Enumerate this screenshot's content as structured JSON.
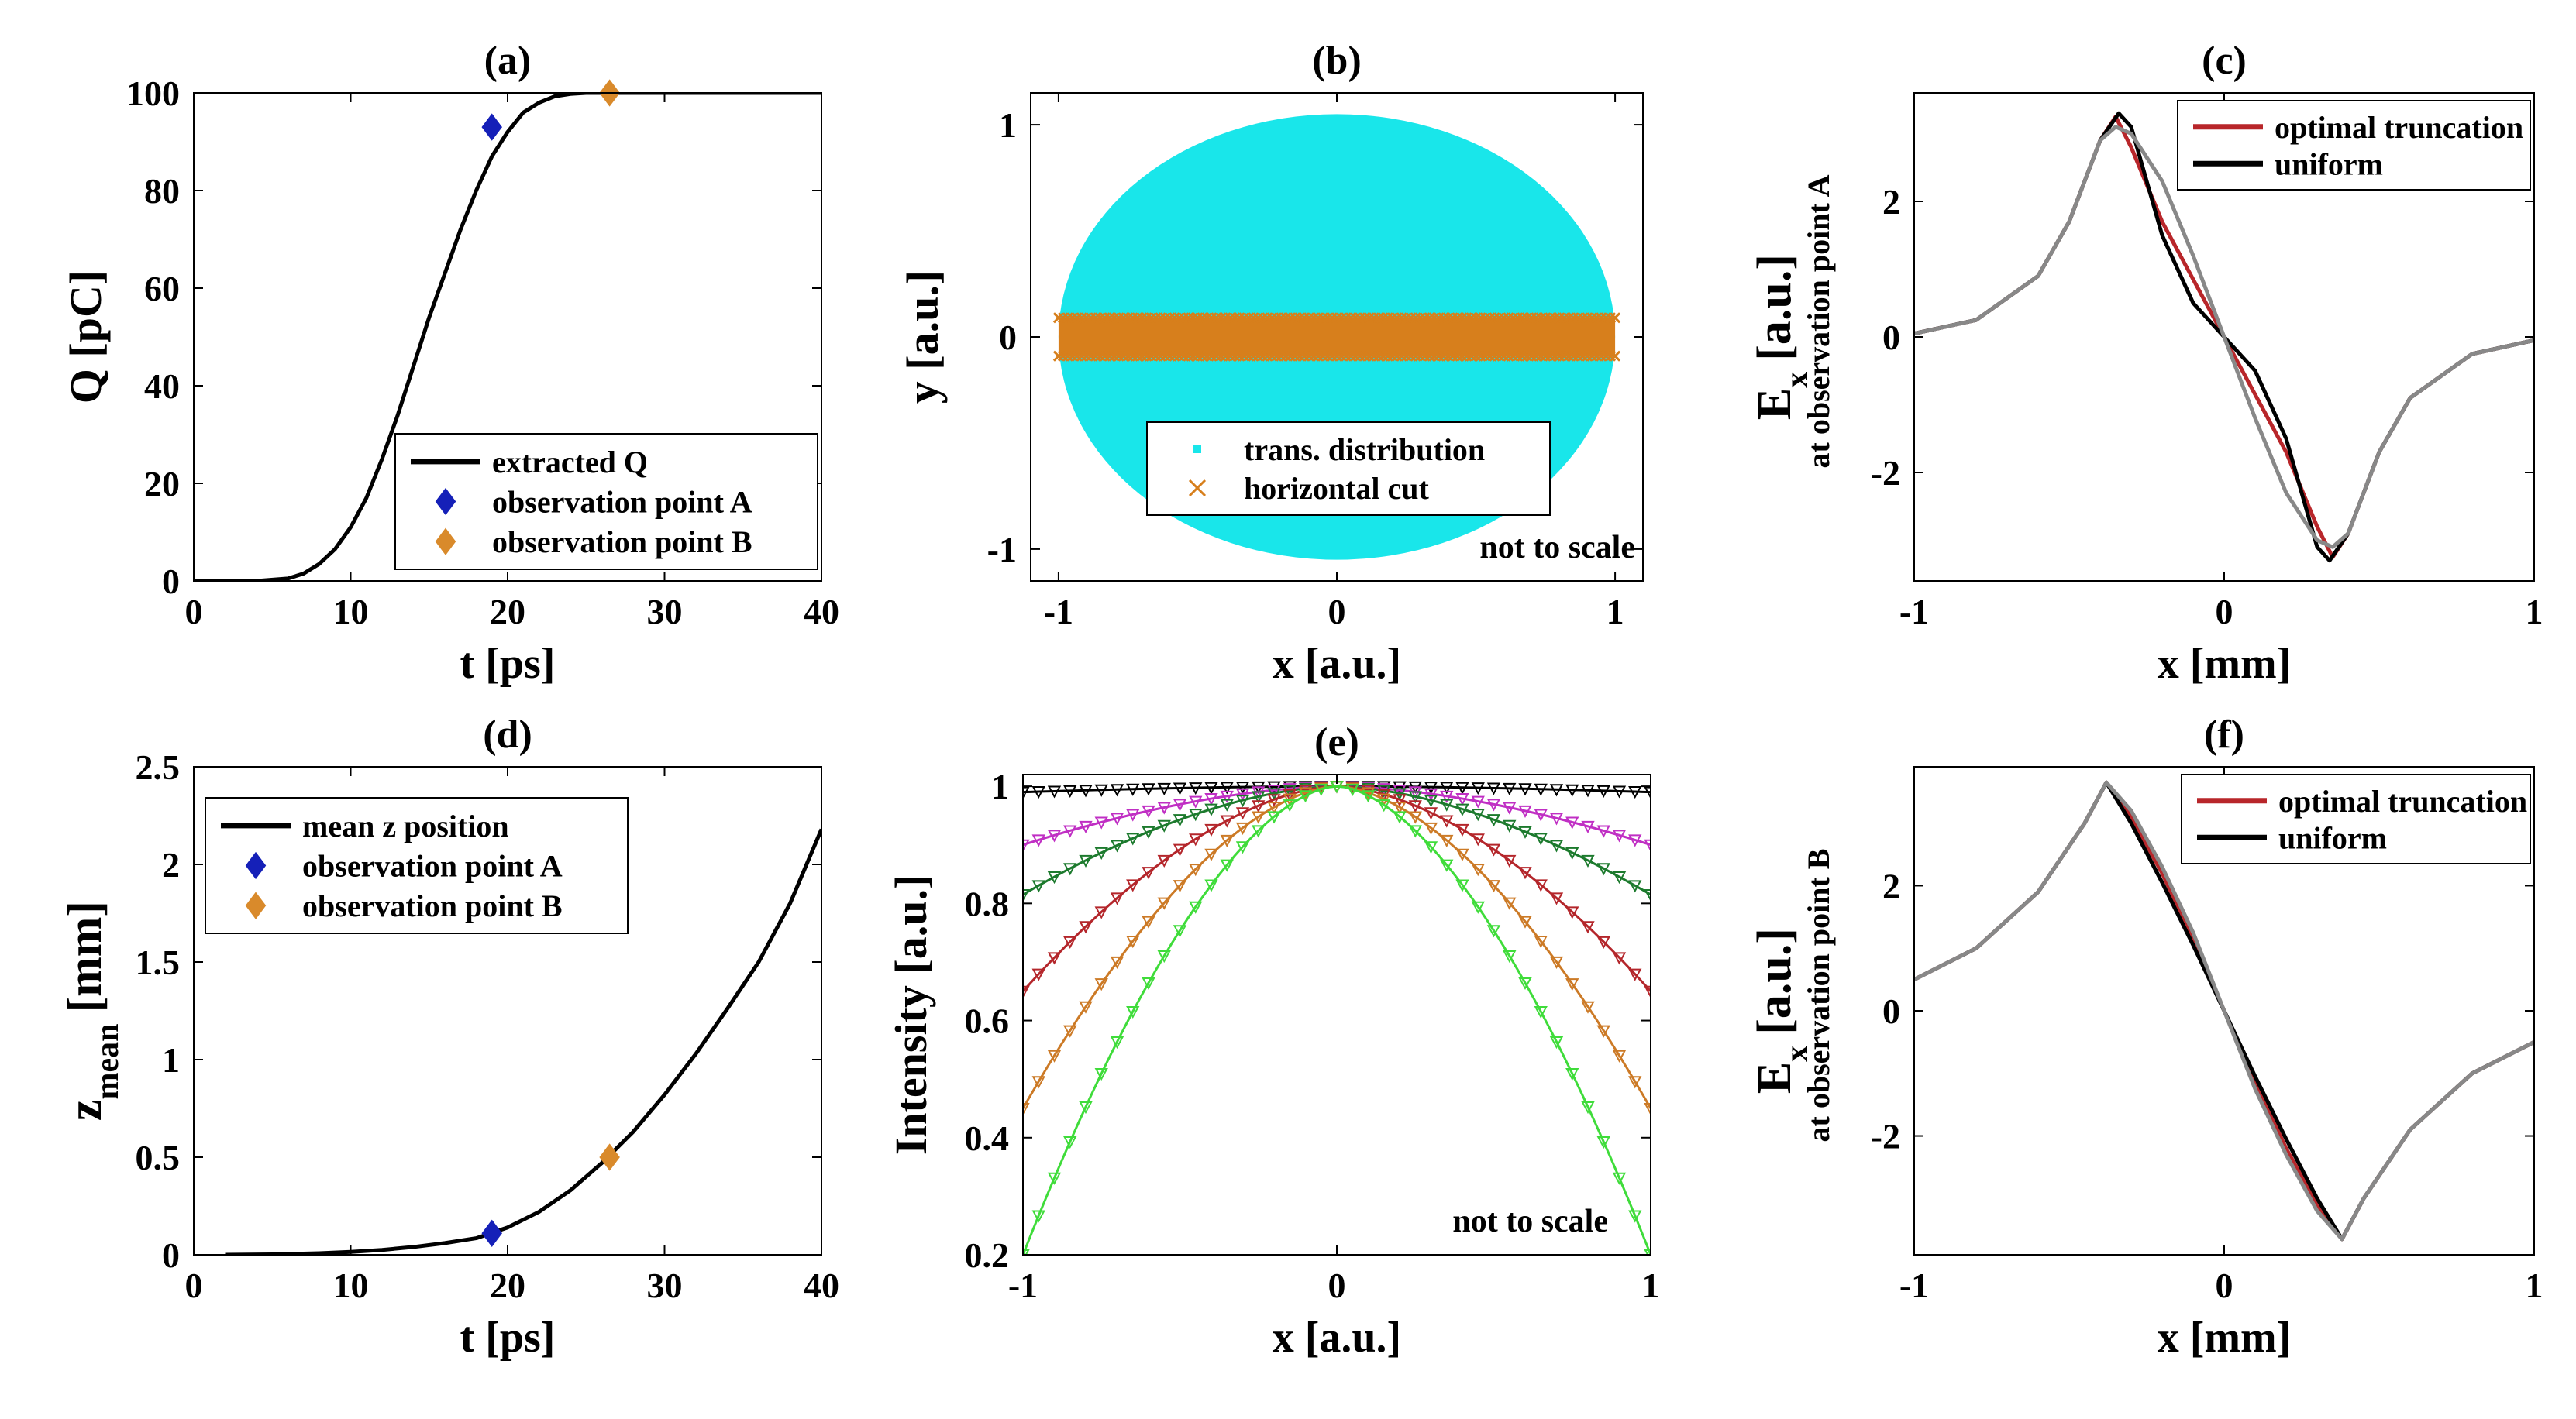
{
  "figure": {
    "panels": [
      {
        "id": "a",
        "title": "(a)",
        "type": "line",
        "xlabel": "t [ps]",
        "ylabel": "Q [pC]",
        "xlim": [
          0,
          40
        ],
        "ylim": [
          0,
          100
        ],
        "xticks": [
          0,
          10,
          20,
          30,
          40
        ],
        "yticks": [
          0,
          20,
          40,
          60,
          80,
          100
        ],
        "xticklabels": [
          "0",
          "10",
          "20",
          "30",
          "40"
        ],
        "yticklabels": [
          "0",
          "20",
          "40",
          "60",
          "80",
          "100"
        ],
        "series": [
          {
            "name": "extracted Q",
            "color": "#000000",
            "marker": "none",
            "x": [
              0,
              2,
              4,
              6,
              7,
              8,
              9,
              10,
              11,
              12,
              13,
              14,
              15,
              16,
              17,
              18,
              19,
              20,
              21,
              22,
              23,
              24,
              25,
              26,
              28,
              30,
              35,
              40
            ],
            "y": [
              0,
              0,
              0,
              0.5,
              1.5,
              3.5,
              6.5,
              11,
              17,
              25,
              34,
              44,
              54,
              63,
              72,
              80,
              87,
              92,
              96,
              98,
              99.3,
              99.8,
              100,
              100,
              100,
              100,
              100,
              100
            ]
          },
          {
            "name": "observation point A",
            "color": "#1520b8",
            "marker": "diamond",
            "x": [
              19
            ],
            "y": [
              93
            ]
          },
          {
            "name": "observation point B",
            "color": "#d98a2b",
            "marker": "diamond",
            "x": [
              26.5
            ],
            "y": [
              100
            ]
          }
        ],
        "legend": {
          "position": "bottom-right",
          "entries": [
            "extracted Q",
            "observation point A",
            "observation point B"
          ]
        }
      },
      {
        "id": "b",
        "title": "(b)",
        "type": "scatter",
        "xlabel": "x [a.u.]",
        "ylabel": "y [a.u.]",
        "xlim": [
          -1.1,
          1.1
        ],
        "ylim": [
          -1.15,
          1.15
        ],
        "xticks": [
          -1,
          0,
          1
        ],
        "yticks": [
          -1,
          0,
          1
        ],
        "xticklabels": [
          "-1",
          "0",
          "1"
        ],
        "yticklabels": [
          "-1",
          "0",
          "1"
        ],
        "series": [
          {
            "name": "trans. distribution",
            "color": "#19e6ea",
            "marker": "dot",
            "shape": "ellipse",
            "rx": 1.0,
            "ry": 1.05
          },
          {
            "name": "horizontal cut",
            "color": "#d77f1c",
            "marker": "x",
            "shape": "band",
            "x": [
              -1,
              1
            ],
            "y": [
              -0.09,
              0.09
            ]
          }
        ],
        "legend": {
          "position": "bottom-center",
          "entries": [
            "trans. distribution",
            "horizontal cut"
          ]
        },
        "annotation": "not to scale"
      },
      {
        "id": "c",
        "title": "(c)",
        "type": "line",
        "xlabel": "x [mm]",
        "ylabel_main": "E",
        "ylabel_sub": "x",
        "ylabel_unit": "[a.u.]",
        "ylabel_second": "at observation point A",
        "xlim": [
          -1,
          1
        ],
        "ylim": [
          -3.6,
          3.6
        ],
        "xticks": [
          -1,
          0,
          1
        ],
        "yticks": [
          -2,
          0,
          2
        ],
        "xticklabels": [
          "-1",
          "0",
          "1"
        ],
        "yticklabels": [
          "-2",
          "0",
          "2"
        ],
        "series": [
          {
            "name": "optimal truncation",
            "color": "#b8262a",
            "x": [
              -1,
              -0.8,
              -0.6,
              -0.5,
              -0.4,
              -0.35,
              -0.3,
              -0.2,
              -0.1,
              0,
              0.1,
              0.2,
              0.3,
              0.35,
              0.4,
              0.5,
              0.6,
              0.8,
              1
            ],
            "y": [
              0.05,
              0.25,
              0.9,
              1.7,
              2.9,
              3.25,
              2.8,
              1.7,
              0.85,
              0,
              -0.85,
              -1.7,
              -2.8,
              -3.25,
              -2.9,
              -1.7,
              -0.9,
              -0.25,
              -0.05
            ]
          },
          {
            "name": "uniform",
            "color": "#000000",
            "x": [
              -1,
              -0.8,
              -0.6,
              -0.5,
              -0.4,
              -0.34,
              -0.3,
              -0.25,
              -0.2,
              -0.1,
              0,
              0.1,
              0.2,
              0.25,
              0.3,
              0.34,
              0.4,
              0.5,
              0.6,
              0.8,
              1
            ],
            "y": [
              0.05,
              0.25,
              0.9,
              1.7,
              2.9,
              3.3,
              3.1,
              2.3,
              1.5,
              0.5,
              0,
              -0.5,
              -1.5,
              -2.3,
              -3.1,
              -3.3,
              -2.9,
              -1.7,
              -0.9,
              -0.25,
              -0.05
            ]
          },
          {
            "name": "",
            "color": "#888888",
            "legend": false,
            "x": [
              -1,
              -0.8,
              -0.6,
              -0.5,
              -0.4,
              -0.35,
              -0.3,
              -0.2,
              -0.1,
              0,
              0.1,
              0.2,
              0.3,
              0.35,
              0.4,
              0.5,
              0.6,
              0.8,
              1
            ],
            "y": [
              0.05,
              0.25,
              0.9,
              1.7,
              2.9,
              3.1,
              3.0,
              2.3,
              1.2,
              0,
              -1.2,
              -2.3,
              -3.0,
              -3.1,
              -2.9,
              -1.7,
              -0.9,
              -0.25,
              -0.05
            ]
          }
        ],
        "legend": {
          "position": "top-right",
          "entries": [
            "optimal truncation",
            "uniform"
          ]
        }
      },
      {
        "id": "d",
        "title": "(d)",
        "type": "line",
        "xlabel": "t [ps]",
        "ylabel_main": "z",
        "ylabel_sub": "mean",
        "ylabel_unit": "[mm]",
        "xlim": [
          0,
          40
        ],
        "ylim": [
          0,
          2.5
        ],
        "xticks": [
          0,
          10,
          20,
          30,
          40
        ],
        "yticks": [
          0,
          0.5,
          1,
          1.5,
          2,
          2.5
        ],
        "xticklabels": [
          "0",
          "10",
          "20",
          "30",
          "40"
        ],
        "yticklabels": [
          "0",
          "0.5",
          "1",
          "1.5",
          "2",
          "2.5"
        ],
        "series": [
          {
            "name": "mean z position",
            "color": "#000000",
            "marker": "none",
            "x": [
              2,
              5,
              8,
              10,
              12,
              14,
              16,
              18,
              20,
              22,
              24,
              26,
              28,
              30,
              32,
              34,
              36,
              38,
              40
            ],
            "y": [
              0,
              0.002,
              0.008,
              0.015,
              0.025,
              0.04,
              0.06,
              0.085,
              0.14,
              0.22,
              0.33,
              0.47,
              0.63,
              0.82,
              1.03,
              1.26,
              1.5,
              1.8,
              2.18
            ]
          },
          {
            "name": "observation point A",
            "color": "#1520b8",
            "marker": "diamond",
            "x": [
              19
            ],
            "y": [
              0.11
            ]
          },
          {
            "name": "observation point B",
            "color": "#d98a2b",
            "marker": "diamond",
            "x": [
              26.5
            ],
            "y": [
              0.5
            ]
          }
        ],
        "legend": {
          "position": "top-left",
          "entries": [
            "mean z position",
            "observation point A",
            "observation point B"
          ]
        }
      },
      {
        "id": "e",
        "title": "(e)",
        "type": "line",
        "xlabel": "x [a.u.]",
        "ylabel": "Intensity [a.u.]",
        "xlim": [
          -1,
          1
        ],
        "ylim": [
          0.2,
          1.02
        ],
        "xticks": [
          -1,
          0,
          1
        ],
        "yticks": [
          0.2,
          0.4,
          0.6,
          0.8,
          1
        ],
        "xticklabels": [
          "-1",
          "0",
          "1"
        ],
        "yticklabels": [
          "0.2",
          "0.4",
          "0.6",
          "0.8",
          "1"
        ],
        "series": [
          {
            "name": "",
            "color": "#000000",
            "edge": 0.99
          },
          {
            "name": "",
            "color": "#c02fc4",
            "edge": 0.9
          },
          {
            "name": "",
            "color": "#1c7a2d",
            "edge": 0.815
          },
          {
            "name": "",
            "color": "#b4262b",
            "edge": 0.65
          },
          {
            "name": "",
            "color": "#cc7a26",
            "edge": 0.45
          },
          {
            "name": "",
            "color": "#3fdc3a",
            "edge": 0.2
          }
        ],
        "annotation": "not to scale"
      },
      {
        "id": "f",
        "title": "(f)",
        "type": "line",
        "xlabel": "x [mm]",
        "ylabel_main": "E",
        "ylabel_sub": "x",
        "ylabel_unit": "[a.u.]",
        "ylabel_second": "at observation point B",
        "xlim": [
          -1,
          1
        ],
        "ylim": [
          -3.9,
          3.9
        ],
        "xticks": [
          -1,
          0,
          1
        ],
        "yticks": [
          -2,
          0,
          2
        ],
        "xticklabels": [
          "-1",
          "0",
          "1"
        ],
        "yticklabels": [
          "-2",
          "0",
          "2"
        ],
        "series": [
          {
            "name": "optimal truncation",
            "color": "#b8262a",
            "x": [
              -1,
              -0.8,
              -0.6,
              -0.45,
              -0.38,
              -0.3,
              -0.2,
              -0.1,
              0,
              0.1,
              0.2,
              0.3,
              0.38,
              0.45,
              0.6,
              0.8,
              1
            ],
            "y": [
              0.5,
              1.0,
              1.9,
              3.0,
              3.65,
              3.1,
              2.2,
              1.15,
              0,
              -1.15,
              -2.2,
              -3.1,
              -3.65,
              -3.0,
              -1.9,
              -1.0,
              -0.5
            ]
          },
          {
            "name": "uniform",
            "color": "#000000",
            "x": [
              -1,
              -0.8,
              -0.6,
              -0.45,
              -0.38,
              -0.3,
              -0.2,
              -0.1,
              0,
              0.1,
              0.2,
              0.3,
              0.38,
              0.45,
              0.6,
              0.8,
              1
            ],
            "y": [
              0.5,
              1.0,
              1.9,
              3.0,
              3.65,
              3.0,
              2.05,
              1.05,
              0,
              -1.05,
              -2.05,
              -3.0,
              -3.65,
              -3.0,
              -1.9,
              -1.0,
              -0.5
            ]
          },
          {
            "name": "",
            "color": "#888888",
            "legend": false,
            "x": [
              -1,
              -0.8,
              -0.6,
              -0.45,
              -0.38,
              -0.3,
              -0.2,
              -0.1,
              0,
              0.1,
              0.2,
              0.3,
              0.38,
              0.45,
              0.6,
              0.8,
              1
            ],
            "y": [
              0.5,
              1.0,
              1.9,
              3.0,
              3.65,
              3.2,
              2.3,
              1.25,
              0,
              -1.25,
              -2.3,
              -3.2,
              -3.65,
              -3.0,
              -1.9,
              -1.0,
              -0.5
            ]
          }
        ],
        "legend": {
          "position": "top-right",
          "entries": [
            "optimal truncation",
            "uniform"
          ]
        }
      }
    ]
  }
}
